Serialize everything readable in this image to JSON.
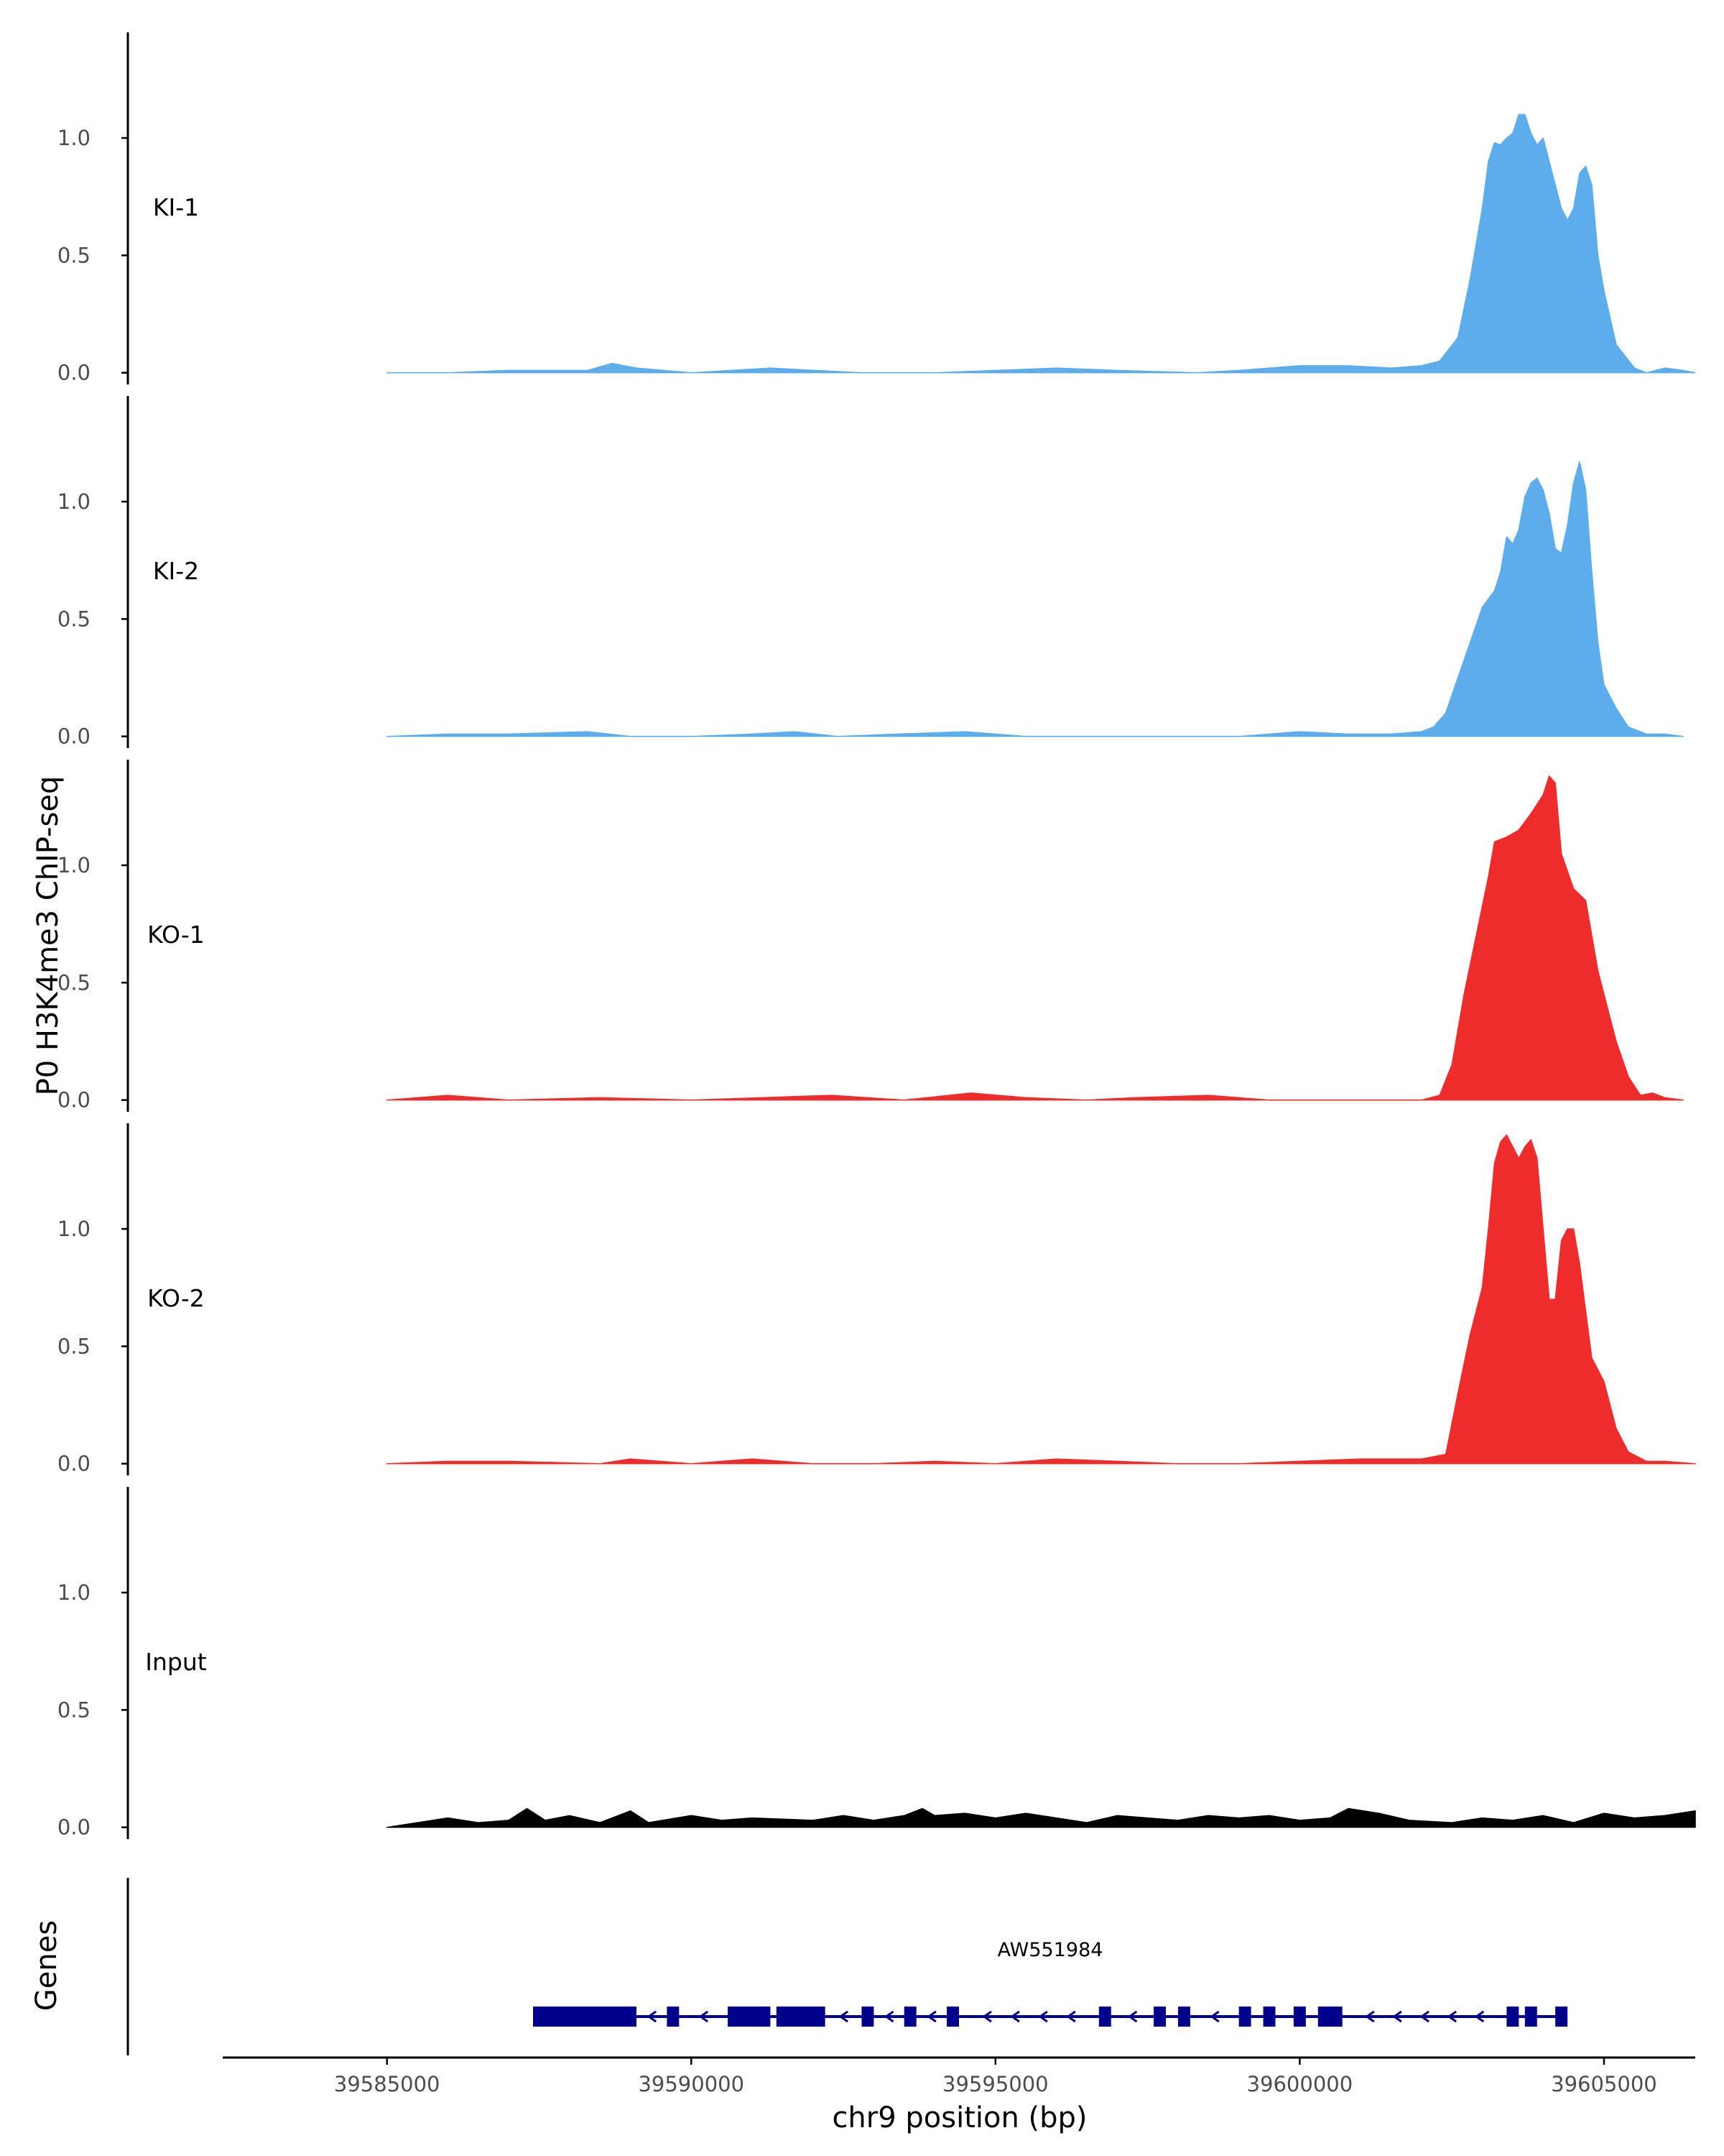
{
  "chart_data": {
    "type": "area",
    "ylabel": "P0 H3K4me3 ChIP-seq",
    "xlabel": "chr9 position (bp)",
    "xlim": [
      39582300,
      39606500
    ],
    "ylim": [
      -0.05,
      1.45
    ],
    "yticks": [
      0.0,
      0.5,
      1.0
    ],
    "ytick_labels": [
      "0.0",
      "0.5",
      "1.0"
    ],
    "xticks": [
      39585000,
      39590000,
      39595000,
      39600000,
      39605000
    ],
    "xtick_labels": [
      "39585000",
      "39590000",
      "39595000",
      "39600000",
      "39605000"
    ],
    "series": [
      {
        "name": "KI-1",
        "color": "#5DADEC",
        "x": [
          39585000,
          39586000,
          39587000,
          39588300,
          39588700,
          39588900,
          39589100,
          39590000,
          39591300,
          39592800,
          39594000,
          39595000,
          39596000,
          39597000,
          39598300,
          39599000,
          39599500,
          39600000,
          39600800,
          39601500,
          39602000,
          39602300,
          39602600,
          39602800,
          39603000,
          39603100,
          39603200,
          39603300,
          39603400,
          39603500,
          39603600,
          39603700,
          39603800,
          39603900,
          39604000,
          39604100,
          39604200,
          39604300,
          39604400,
          39604500,
          39604600,
          39604700,
          39604800,
          39604900,
          39605000,
          39605200,
          39605500,
          39605700,
          39606000,
          39606300,
          39606500
        ],
        "y": [
          0.0,
          0.0,
          0.01,
          0.01,
          0.04,
          0.03,
          0.02,
          0.0,
          0.02,
          0.0,
          0.0,
          0.01,
          0.02,
          0.01,
          0.0,
          0.01,
          0.02,
          0.03,
          0.03,
          0.02,
          0.03,
          0.05,
          0.15,
          0.4,
          0.7,
          0.9,
          0.98,
          0.97,
          1.0,
          1.02,
          1.1,
          1.1,
          1.02,
          0.97,
          1.0,
          0.9,
          0.8,
          0.7,
          0.65,
          0.7,
          0.85,
          0.88,
          0.8,
          0.5,
          0.35,
          0.12,
          0.02,
          0.0,
          0.02,
          0.01,
          0.0
        ]
      },
      {
        "name": "KI-2",
        "color": "#5DADEC",
        "x": [
          39585000,
          39586000,
          39587000,
          39588300,
          39589000,
          39590000,
          39591000,
          39591700,
          39592400,
          39593400,
          39594500,
          39595500,
          39596500,
          39597500,
          39598300,
          39599000,
          39600000,
          39600800,
          39601500,
          39602000,
          39602200,
          39602400,
          39602600,
          39602800,
          39603000,
          39603200,
          39603300,
          39603400,
          39603500,
          39603600,
          39603700,
          39603800,
          39603900,
          39604000,
          39604100,
          39604200,
          39604300,
          39604400,
          39604500,
          39604600,
          39604700,
          39604800,
          39604900,
          39605000,
          39605200,
          39605400,
          39605700,
          39606000,
          39606300
        ],
        "y": [
          0.0,
          0.01,
          0.01,
          0.02,
          0.0,
          0.0,
          0.01,
          0.02,
          0.0,
          0.01,
          0.02,
          0.0,
          0.0,
          0.0,
          0.0,
          0.0,
          0.02,
          0.01,
          0.01,
          0.02,
          0.04,
          0.1,
          0.25,
          0.4,
          0.55,
          0.62,
          0.7,
          0.85,
          0.82,
          0.88,
          1.02,
          1.08,
          1.1,
          1.05,
          0.95,
          0.8,
          0.78,
          0.9,
          1.08,
          1.17,
          1.05,
          0.7,
          0.4,
          0.22,
          0.12,
          0.04,
          0.01,
          0.01,
          0.0
        ]
      },
      {
        "name": "KO-1",
        "color": "#EE2C2C",
        "x": [
          39585000,
          39586000,
          39587000,
          39588500,
          39590000,
          39592300,
          39593500,
          39594600,
          39595500,
          39596500,
          39597300,
          39598500,
          39599500,
          39600500,
          39601500,
          39602000,
          39602300,
          39602500,
          39602700,
          39602900,
          39603100,
          39603200,
          39603400,
          39603600,
          39603800,
          39604000,
          39604100,
          39604200,
          39604300,
          39604500,
          39604700,
          39604900,
          39605200,
          39605400,
          39605600,
          39605800,
          39606000,
          39606300
        ],
        "y": [
          0.0,
          0.02,
          0.0,
          0.01,
          0.0,
          0.02,
          0.0,
          0.03,
          0.01,
          0.0,
          0.01,
          0.02,
          0.0,
          0.0,
          0.0,
          0.0,
          0.02,
          0.15,
          0.45,
          0.7,
          0.95,
          1.1,
          1.12,
          1.15,
          1.22,
          1.3,
          1.38,
          1.35,
          1.05,
          0.9,
          0.85,
          0.55,
          0.25,
          0.1,
          0.02,
          0.03,
          0.01,
          0.0
        ]
      },
      {
        "name": "KO-2",
        "color": "#EE2C2C",
        "x": [
          39585000,
          39586000,
          39587000,
          39588500,
          39589000,
          39590000,
          39591000,
          39592000,
          39593000,
          39594000,
          39595000,
          39596000,
          39597000,
          39598000,
          39599000,
          39600000,
          39601000,
          39602000,
          39602400,
          39602600,
          39602800,
          39603000,
          39603100,
          39603200,
          39603300,
          39603400,
          39603500,
          39603600,
          39603700,
          39603800,
          39603900,
          39604000,
          39604100,
          39604200,
          39604300,
          39604400,
          39604500,
          39604600,
          39604800,
          39605000,
          39605200,
          39605400,
          39605700,
          39606000,
          39606500
        ],
        "y": [
          0.0,
          0.01,
          0.01,
          0.0,
          0.02,
          0.0,
          0.02,
          0.0,
          0.0,
          0.01,
          0.0,
          0.02,
          0.01,
          0.0,
          0.0,
          0.01,
          0.02,
          0.02,
          0.04,
          0.3,
          0.55,
          0.75,
          1.0,
          1.28,
          1.37,
          1.4,
          1.35,
          1.3,
          1.35,
          1.38,
          1.3,
          1.0,
          0.7,
          0.7,
          0.95,
          1.0,
          1.0,
          0.85,
          0.45,
          0.35,
          0.15,
          0.05,
          0.01,
          0.01,
          0.0
        ]
      },
      {
        "name": "Input",
        "color": "#000000",
        "x": [
          39585000,
          39586000,
          39586500,
          39587000,
          39587300,
          39587600,
          39588000,
          39588500,
          39589000,
          39589300,
          39590000,
          39590500,
          39591000,
          39592000,
          39592500,
          39593000,
          39593500,
          39593800,
          39594000,
          39594500,
          39595000,
          39595500,
          39596000,
          39596500,
          39597000,
          39597500,
          39598000,
          39598500,
          39599000,
          39599500,
          39600000,
          39600500,
          39600800,
          39601300,
          39601800,
          39602500,
          39603000,
          39603500,
          39604000,
          39604500,
          39605000,
          39605500,
          39606000,
          39606500
        ],
        "y": [
          0.0,
          0.04,
          0.02,
          0.03,
          0.08,
          0.03,
          0.05,
          0.02,
          0.07,
          0.02,
          0.05,
          0.03,
          0.04,
          0.03,
          0.05,
          0.03,
          0.05,
          0.08,
          0.05,
          0.06,
          0.04,
          0.06,
          0.04,
          0.02,
          0.05,
          0.04,
          0.03,
          0.05,
          0.04,
          0.05,
          0.03,
          0.04,
          0.08,
          0.06,
          0.03,
          0.02,
          0.04,
          0.03,
          0.05,
          0.02,
          0.06,
          0.04,
          0.05,
          0.07
        ]
      }
    ],
    "genes": {
      "label": "Genes",
      "name": "AW551984",
      "start": 39587400,
      "end": 39604400,
      "strand": "-",
      "color": "#00008B",
      "exons": [
        [
          39587400,
          39589100
        ],
        [
          39589600,
          39589800
        ],
        [
          39590600,
          39591300
        ],
        [
          39591400,
          39592200
        ],
        [
          39592800,
          39593000
        ],
        [
          39593500,
          39593700
        ],
        [
          39594200,
          39594400
        ],
        [
          39596700,
          39596900
        ],
        [
          39597600,
          39597800
        ],
        [
          39598000,
          39598200
        ],
        [
          39599000,
          39599200
        ],
        [
          39599400,
          39599600
        ],
        [
          39599900,
          39600100
        ],
        [
          39600300,
          39600700
        ],
        [
          39603400,
          39603600
        ],
        [
          39603700,
          39603900
        ],
        [
          39604200,
          39604400
        ]
      ]
    }
  }
}
